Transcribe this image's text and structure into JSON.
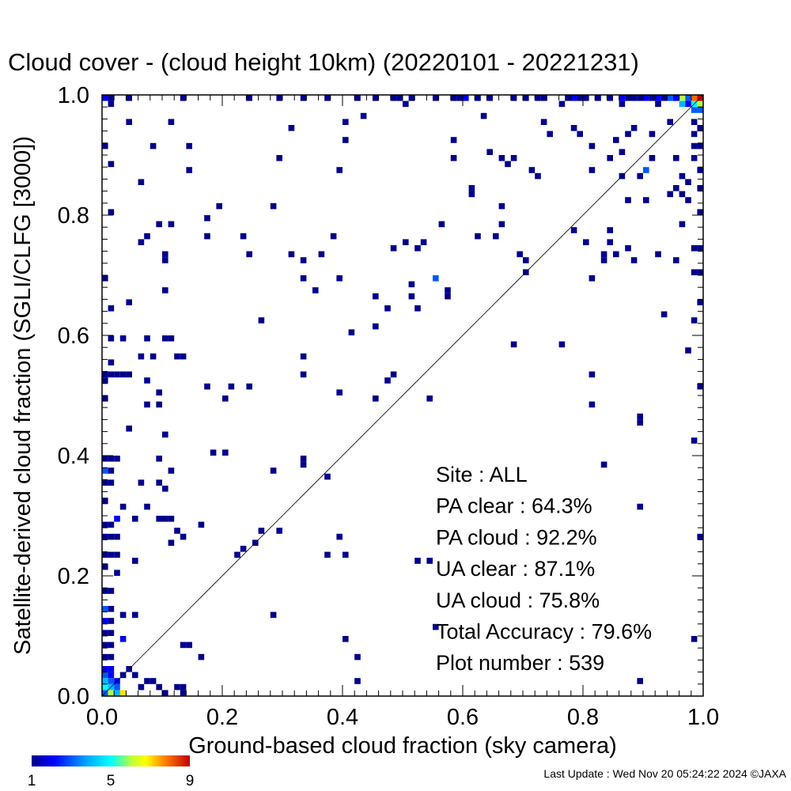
{
  "chart_data": {
    "type": "heatmap",
    "title": "Cloud cover - (cloud height 10km)  (20220101 - 20221231)",
    "xlabel": "Ground-based cloud fraction (sky camera)",
    "ylabel": "Satellite-derived cloud fraction (SGLI/CLFG [3000])",
    "xlim": [
      0.0,
      1.0
    ],
    "ylim": [
      0.0,
      1.0
    ],
    "xticks": [
      "0.0",
      "0.2",
      "0.4",
      "0.6",
      "0.8",
      "1.0"
    ],
    "yticks": [
      "0.0",
      "0.2",
      "0.4",
      "0.6",
      "0.8",
      "1.0"
    ],
    "grid": false,
    "one_to_one_line": true,
    "bin_size": 0.01,
    "colorbar": {
      "min": 1,
      "max": 9,
      "ticks": [
        "1",
        "5",
        "9"
      ]
    },
    "stats": [
      {
        "label": "Site : ALL"
      },
      {
        "label": "PA clear :  64.3%"
      },
      {
        "label": "PA cloud :  92.2%"
      },
      {
        "label": "UA clear :  87.1%"
      },
      {
        "label": "UA cloud :  75.8%"
      },
      {
        "label": "Total Accuracy :  79.6%"
      },
      {
        "label": "Plot number :       539"
      }
    ],
    "points": [
      [
        0.0,
        0.0,
        3
      ],
      [
        0.01,
        0.0,
        6
      ],
      [
        0.02,
        0.0,
        4
      ],
      [
        0.03,
        0.0,
        7
      ],
      [
        0.0,
        0.01,
        5
      ],
      [
        0.01,
        0.01,
        4
      ],
      [
        0.02,
        0.01,
        3
      ],
      [
        0.0,
        0.02,
        4
      ],
      [
        0.01,
        0.02,
        3
      ],
      [
        0.02,
        0.02,
        2
      ],
      [
        0.0,
        0.03,
        3
      ],
      [
        0.01,
        0.03,
        2
      ],
      [
        0.0,
        0.04,
        2
      ],
      [
        0.01,
        0.04,
        2
      ],
      [
        0.03,
        0.03,
        1
      ],
      [
        0.04,
        0.04,
        1
      ],
      [
        0.05,
        0.03,
        1
      ],
      [
        0.06,
        0.01,
        1
      ],
      [
        0.07,
        0.02,
        1
      ],
      [
        0.08,
        0.02,
        1
      ],
      [
        0.09,
        0.01,
        1
      ],
      [
        0.1,
        0.0,
        1
      ],
      [
        0.12,
        0.01,
        1
      ],
      [
        0.13,
        0.0,
        1
      ],
      [
        0.13,
        0.01,
        1
      ],
      [
        0.0,
        0.06,
        1
      ],
      [
        0.01,
        0.06,
        1
      ],
      [
        0.0,
        0.08,
        1
      ],
      [
        0.01,
        0.08,
        1
      ],
      [
        0.0,
        0.1,
        1
      ],
      [
        0.01,
        0.1,
        1
      ],
      [
        0.0,
        0.12,
        2
      ],
      [
        0.01,
        0.12,
        1
      ],
      [
        0.0,
        0.14,
        3
      ],
      [
        0.01,
        0.14,
        1
      ],
      [
        0.0,
        0.17,
        1
      ],
      [
        0.01,
        0.17,
        1
      ],
      [
        0.0,
        0.21,
        1
      ],
      [
        0.0,
        0.23,
        1
      ],
      [
        0.01,
        0.23,
        1
      ],
      [
        0.0,
        0.26,
        1
      ],
      [
        0.01,
        0.26,
        1
      ],
      [
        0.02,
        0.26,
        1
      ],
      [
        0.0,
        0.28,
        1
      ],
      [
        0.01,
        0.28,
        1
      ],
      [
        0.02,
        0.29,
        2
      ],
      [
        0.0,
        0.32,
        1
      ],
      [
        0.0,
        0.35,
        1
      ],
      [
        0.01,
        0.35,
        1
      ],
      [
        0.0,
        0.37,
        3
      ],
      [
        0.01,
        0.37,
        1
      ],
      [
        0.0,
        0.39,
        1
      ],
      [
        0.01,
        0.39,
        1
      ],
      [
        0.02,
        0.39,
        1
      ],
      [
        0.0,
        0.49,
        1
      ],
      [
        0.0,
        0.52,
        1
      ],
      [
        0.0,
        0.53,
        1
      ],
      [
        0.01,
        0.53,
        1
      ],
      [
        0.02,
        0.53,
        1
      ],
      [
        0.03,
        0.53,
        1
      ],
      [
        0.01,
        0.55,
        1
      ],
      [
        0.01,
        0.59,
        1
      ],
      [
        0.01,
        0.64,
        1
      ],
      [
        0.0,
        0.69,
        1
      ],
      [
        0.01,
        0.8,
        1
      ],
      [
        0.0,
        0.91,
        1
      ],
      [
        0.01,
        0.88,
        1
      ],
      [
        0.01,
        0.98,
        1
      ],
      [
        0.02,
        0.23,
        1
      ],
      [
        0.02,
        0.2,
        1
      ],
      [
        0.03,
        0.13,
        1
      ],
      [
        0.03,
        0.09,
        2
      ],
      [
        0.03,
        0.31,
        1
      ],
      [
        0.04,
        0.44,
        1
      ],
      [
        0.04,
        0.53,
        1
      ],
      [
        0.04,
        0.65,
        1
      ],
      [
        0.03,
        0.59,
        1
      ],
      [
        0.04,
        0.95,
        1
      ],
      [
        0.06,
        0.85,
        1
      ],
      [
        0.05,
        0.29,
        1
      ],
      [
        0.05,
        0.22,
        1
      ],
      [
        0.05,
        0.13,
        1
      ],
      [
        0.06,
        0.35,
        1
      ],
      [
        0.06,
        0.56,
        1
      ],
      [
        0.07,
        0.59,
        1
      ],
      [
        0.07,
        0.52,
        1
      ],
      [
        0.07,
        0.48,
        1
      ],
      [
        0.07,
        0.31,
        1
      ],
      [
        0.06,
        0.75,
        1
      ],
      [
        0.07,
        0.76,
        1
      ],
      [
        0.08,
        0.91,
        1
      ],
      [
        0.08,
        0.56,
        1
      ],
      [
        0.09,
        0.78,
        1
      ],
      [
        0.09,
        0.5,
        1
      ],
      [
        0.09,
        0.48,
        1
      ],
      [
        0.09,
        0.39,
        1
      ],
      [
        0.09,
        0.35,
        1
      ],
      [
        0.09,
        0.29,
        1
      ],
      [
        0.1,
        0.34,
        1
      ],
      [
        0.1,
        0.59,
        1
      ],
      [
        0.11,
        0.59,
        1
      ],
      [
        0.1,
        0.73,
        1
      ],
      [
        0.1,
        0.72,
        1
      ],
      [
        0.1,
        0.67,
        1
      ],
      [
        0.11,
        0.78,
        1
      ],
      [
        0.11,
        0.95,
        1
      ],
      [
        0.1,
        0.43,
        1
      ],
      [
        0.11,
        0.37,
        1
      ],
      [
        0.1,
        0.29,
        1
      ],
      [
        0.11,
        0.29,
        1
      ],
      [
        0.11,
        0.25,
        1
      ],
      [
        0.12,
        0.27,
        1
      ],
      [
        0.13,
        0.26,
        1
      ],
      [
        0.12,
        0.56,
        1
      ],
      [
        0.13,
        0.56,
        1
      ],
      [
        0.14,
        0.87,
        1
      ],
      [
        0.14,
        0.91,
        1
      ],
      [
        0.14,
        0.08,
        1
      ],
      [
        0.13,
        0.08,
        1
      ],
      [
        0.16,
        0.06,
        1
      ],
      [
        0.17,
        0.76,
        1
      ],
      [
        0.17,
        0.79,
        1
      ],
      [
        0.17,
        0.51,
        1
      ],
      [
        0.16,
        0.28,
        1
      ],
      [
        0.18,
        0.4,
        1
      ],
      [
        0.19,
        0.81,
        1
      ],
      [
        0.2,
        0.4,
        1
      ],
      [
        0.2,
        0.49,
        1
      ],
      [
        0.21,
        0.51,
        1
      ],
      [
        0.22,
        0.23,
        1
      ],
      [
        0.23,
        0.76,
        1
      ],
      [
        0.23,
        0.24,
        1
      ],
      [
        0.24,
        0.73,
        1
      ],
      [
        0.24,
        0.51,
        1
      ],
      [
        0.25,
        0.25,
        1
      ],
      [
        0.26,
        0.27,
        1
      ],
      [
        0.26,
        0.62,
        1
      ],
      [
        0.28,
        0.81,
        1
      ],
      [
        0.28,
        0.13,
        1
      ],
      [
        0.29,
        0.89,
        1
      ],
      [
        0.28,
        0.37,
        1
      ],
      [
        0.29,
        0.27,
        1
      ],
      [
        0.31,
        0.94,
        1
      ],
      [
        0.31,
        0.73,
        1
      ],
      [
        0.33,
        0.72,
        1
      ],
      [
        0.33,
        0.69,
        1
      ],
      [
        0.33,
        0.56,
        1
      ],
      [
        0.33,
        0.53,
        1
      ],
      [
        0.33,
        0.39,
        1
      ],
      [
        0.33,
        0.38,
        1
      ],
      [
        0.35,
        0.67,
        1
      ],
      [
        0.36,
        0.73,
        1
      ],
      [
        0.37,
        0.36,
        1
      ],
      [
        0.37,
        0.23,
        1
      ],
      [
        0.38,
        0.76,
        1
      ],
      [
        0.39,
        0.69,
        1
      ],
      [
        0.39,
        0.5,
        1
      ],
      [
        0.39,
        0.26,
        1
      ],
      [
        0.4,
        0.23,
        1
      ],
      [
        0.4,
        0.09,
        1
      ],
      [
        0.39,
        0.87,
        1
      ],
      [
        0.4,
        0.92,
        1
      ],
      [
        0.4,
        0.95,
        1
      ],
      [
        0.41,
        0.6,
        1
      ],
      [
        0.42,
        0.06,
        1
      ],
      [
        0.42,
        0.02,
        1
      ],
      [
        0.43,
        0.96,
        1
      ],
      [
        0.45,
        0.61,
        1
      ],
      [
        0.45,
        0.66,
        1
      ],
      [
        0.45,
        0.49,
        1
      ],
      [
        0.47,
        0.52,
        1
      ],
      [
        0.47,
        0.64,
        1
      ],
      [
        0.48,
        0.53,
        1
      ],
      [
        0.48,
        0.74,
        1
      ],
      [
        0.5,
        0.75,
        1
      ],
      [
        0.51,
        0.68,
        1
      ],
      [
        0.51,
        0.66,
        1
      ],
      [
        0.52,
        0.74,
        1
      ],
      [
        0.52,
        0.64,
        1
      ],
      [
        0.53,
        0.75,
        1
      ],
      [
        0.52,
        0.22,
        1
      ],
      [
        0.54,
        0.22,
        1
      ],
      [
        0.54,
        0.49,
        1
      ],
      [
        0.55,
        0.69,
        3
      ],
      [
        0.55,
        0.11,
        1
      ],
      [
        0.56,
        0.78,
        1
      ],
      [
        0.57,
        0.66,
        1
      ],
      [
        0.57,
        0.67,
        1
      ],
      [
        0.58,
        0.89,
        1
      ],
      [
        0.58,
        0.92,
        1
      ],
      [
        0.61,
        0.83,
        1
      ],
      [
        0.61,
        0.84,
        1
      ],
      [
        0.62,
        0.76,
        1
      ],
      [
        0.63,
        0.96,
        1
      ],
      [
        0.64,
        0.9,
        1
      ],
      [
        0.66,
        0.81,
        1
      ],
      [
        0.66,
        0.78,
        1
      ],
      [
        0.65,
        0.76,
        1
      ],
      [
        0.66,
        0.89,
        1
      ],
      [
        0.67,
        0.88,
        1
      ],
      [
        0.68,
        0.89,
        1
      ],
      [
        0.68,
        0.58,
        1
      ],
      [
        0.69,
        0.73,
        1
      ],
      [
        0.7,
        0.7,
        1
      ],
      [
        0.7,
        0.72,
        1
      ],
      [
        0.71,
        0.87,
        1
      ],
      [
        0.72,
        0.86,
        1
      ],
      [
        0.73,
        0.95,
        1
      ],
      [
        0.74,
        0.93,
        1
      ],
      [
        0.76,
        0.58,
        1
      ],
      [
        0.78,
        0.77,
        1
      ],
      [
        0.78,
        0.94,
        1
      ],
      [
        0.79,
        0.93,
        1
      ],
      [
        0.8,
        0.75,
        1
      ],
      [
        0.81,
        0.91,
        1
      ],
      [
        0.81,
        0.87,
        1
      ],
      [
        0.81,
        0.53,
        1
      ],
      [
        0.81,
        0.48,
        1
      ],
      [
        0.81,
        0.69,
        1
      ],
      [
        0.83,
        0.38,
        1
      ],
      [
        0.83,
        0.73,
        1
      ],
      [
        0.83,
        0.72,
        1
      ],
      [
        0.84,
        0.77,
        1
      ],
      [
        0.84,
        0.75,
        1
      ],
      [
        0.84,
        0.89,
        1
      ],
      [
        0.85,
        0.92,
        1
      ],
      [
        0.85,
        0.73,
        1
      ],
      [
        0.86,
        0.86,
        1
      ],
      [
        0.86,
        0.9,
        1
      ],
      [
        0.87,
        0.93,
        1
      ],
      [
        0.87,
        0.82,
        1
      ],
      [
        0.87,
        0.74,
        1
      ],
      [
        0.88,
        0.72,
        1
      ],
      [
        0.89,
        0.86,
        1
      ],
      [
        0.88,
        0.94,
        1
      ],
      [
        0.89,
        0.31,
        1
      ],
      [
        0.89,
        0.02,
        1
      ],
      [
        0.89,
        0.45,
        1
      ],
      [
        0.89,
        0.46,
        1
      ],
      [
        0.9,
        0.87,
        3
      ],
      [
        0.9,
        0.82,
        1
      ],
      [
        0.91,
        0.93,
        1
      ],
      [
        0.91,
        0.89,
        1
      ],
      [
        0.92,
        0.73,
        1
      ],
      [
        0.93,
        0.63,
        1
      ],
      [
        0.94,
        0.95,
        1
      ],
      [
        0.94,
        0.83,
        1
      ],
      [
        0.95,
        0.84,
        1
      ],
      [
        0.95,
        0.72,
        1
      ],
      [
        0.95,
        0.89,
        1
      ],
      [
        0.96,
        0.78,
        1
      ],
      [
        0.96,
        0.86,
        1
      ],
      [
        0.96,
        0.83,
        1
      ],
      [
        0.97,
        0.85,
        1
      ],
      [
        0.97,
        0.82,
        1
      ],
      [
        0.97,
        0.57,
        1
      ],
      [
        0.98,
        0.42,
        1
      ],
      [
        0.98,
        0.62,
        1
      ],
      [
        0.98,
        0.09,
        1
      ],
      [
        0.99,
        0.51,
        1
      ],
      [
        0.99,
        0.65,
        1
      ],
      [
        0.99,
        0.26,
        1
      ],
      [
        0.99,
        0.8,
        1
      ],
      [
        0.99,
        0.84,
        1
      ],
      [
        0.99,
        0.87,
        1
      ],
      [
        0.99,
        0.91,
        1
      ],
      [
        0.99,
        0.94,
        1
      ],
      [
        0.98,
        0.97,
        3
      ],
      [
        0.99,
        0.97,
        3
      ],
      [
        0.98,
        0.7,
        1
      ],
      [
        0.99,
        0.7,
        1
      ],
      [
        0.98,
        0.74,
        1
      ],
      [
        0.99,
        0.74,
        1
      ],
      [
        0.98,
        0.89,
        1
      ],
      [
        0.98,
        0.91,
        1
      ],
      [
        0.98,
        0.93,
        1
      ],
      [
        0.98,
        0.95,
        1
      ],
      [
        0.98,
        0.98,
        5
      ],
      [
        0.99,
        0.98,
        6
      ],
      [
        0.97,
        0.99,
        3
      ],
      [
        0.98,
        0.99,
        8
      ],
      [
        0.99,
        0.99,
        9
      ],
      [
        0.97,
        0.98,
        2
      ],
      [
        0.96,
        0.99,
        6
      ],
      [
        0.96,
        0.98,
        4
      ],
      [
        0.95,
        0.99,
        2
      ],
      [
        0.94,
        0.99,
        3
      ],
      [
        0.93,
        0.99,
        1
      ],
      [
        0.92,
        0.99,
        2
      ],
      [
        0.92,
        0.98,
        1
      ],
      [
        0.91,
        0.99,
        1
      ],
      [
        0.9,
        0.99,
        2
      ],
      [
        0.89,
        0.99,
        1
      ],
      [
        0.88,
        0.99,
        1
      ],
      [
        0.87,
        0.99,
        1
      ],
      [
        0.86,
        0.99,
        2
      ],
      [
        0.86,
        0.98,
        1
      ],
      [
        0.84,
        0.99,
        1
      ],
      [
        0.82,
        0.99,
        1
      ],
      [
        0.8,
        0.99,
        1
      ],
      [
        0.79,
        0.99,
        1
      ],
      [
        0.78,
        0.99,
        2
      ],
      [
        0.77,
        0.99,
        1
      ],
      [
        0.76,
        0.98,
        1
      ],
      [
        0.73,
        0.99,
        1
      ],
      [
        0.72,
        0.99,
        1
      ],
      [
        0.7,
        0.99,
        1
      ],
      [
        0.68,
        0.99,
        1
      ],
      [
        0.64,
        0.99,
        1
      ],
      [
        0.62,
        0.99,
        1
      ],
      [
        0.6,
        0.99,
        2
      ],
      [
        0.59,
        0.99,
        1
      ],
      [
        0.58,
        0.99,
        1
      ],
      [
        0.55,
        0.99,
        1
      ],
      [
        0.51,
        0.99,
        1
      ],
      [
        0.5,
        0.98,
        1
      ],
      [
        0.49,
        0.99,
        1
      ],
      [
        0.48,
        0.99,
        1
      ],
      [
        0.45,
        0.99,
        1
      ],
      [
        0.42,
        0.99,
        1
      ],
      [
        0.37,
        0.99,
        1
      ],
      [
        0.33,
        0.99,
        1
      ],
      [
        0.29,
        0.99,
        1
      ],
      [
        0.24,
        0.99,
        1
      ],
      [
        0.13,
        0.99,
        1
      ],
      [
        0.04,
        0.99,
        1
      ],
      [
        0.0,
        0.99,
        2
      ],
      [
        0.01,
        0.99,
        1
      ]
    ]
  },
  "footer": {
    "last_update": "Last Update : Wed Nov 20 05:24:22 2024  ©JAXA"
  }
}
